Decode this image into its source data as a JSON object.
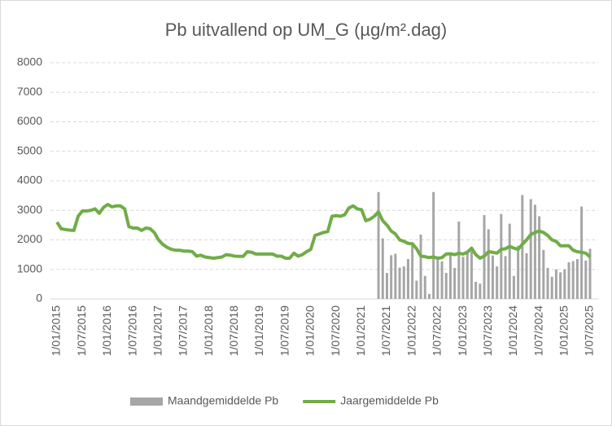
{
  "chart_data": {
    "type": "bar-line",
    "title": "Pb uitvallend op UM_G (µg/m².dag)",
    "categories": [
      "1/01/2015",
      null,
      null,
      null,
      null,
      null,
      "1/07/2015",
      null,
      null,
      null,
      null,
      null,
      "1/01/2016",
      null,
      null,
      null,
      null,
      null,
      "1/07/2016",
      null,
      null,
      null,
      null,
      null,
      "1/01/2017",
      null,
      null,
      null,
      null,
      null,
      "1/07/2017",
      null,
      null,
      null,
      null,
      null,
      "1/01/2018",
      null,
      null,
      null,
      null,
      null,
      "1/07/2018",
      null,
      null,
      null,
      null,
      null,
      "1/01/2019",
      null,
      null,
      null,
      null,
      null,
      "1/07/2019",
      null,
      null,
      null,
      null,
      null,
      "1/01/2020",
      null,
      null,
      null,
      null,
      null,
      "1/07/2020",
      null,
      null,
      null,
      null,
      null,
      "1/01/2021",
      null,
      null,
      null,
      null,
      null,
      "1/07/2021",
      null,
      null,
      null,
      null,
      null,
      "1/01/2022",
      null,
      null,
      null,
      null,
      null,
      "1/07/2022",
      null,
      null,
      null,
      null,
      null,
      "1/01/2023",
      null,
      null,
      null,
      null,
      null,
      "1/07/2023",
      null,
      null,
      null,
      null,
      null,
      "1/01/2024",
      null,
      null,
      null,
      null,
      null,
      "1/07/2024",
      null,
      null,
      null,
      null,
      null,
      "1/01/2025",
      null,
      null,
      null,
      null,
      null,
      "1/07/2025"
    ],
    "series": [
      {
        "name": "Maandgemiddelde Pb",
        "kind": "bar",
        "color": "#a6a6a6",
        "values": [
          null,
          null,
          null,
          null,
          null,
          null,
          null,
          null,
          null,
          null,
          null,
          null,
          null,
          null,
          null,
          null,
          null,
          null,
          null,
          null,
          null,
          null,
          null,
          null,
          null,
          null,
          null,
          null,
          null,
          null,
          null,
          null,
          null,
          null,
          null,
          null,
          null,
          null,
          null,
          null,
          null,
          null,
          null,
          null,
          null,
          null,
          null,
          null,
          null,
          null,
          null,
          null,
          null,
          null,
          null,
          null,
          null,
          null,
          null,
          null,
          null,
          null,
          null,
          null,
          null,
          null,
          null,
          null,
          null,
          null,
          null,
          null,
          null,
          null,
          null,
          null,
          3620,
          2050,
          880,
          1480,
          1530,
          1060,
          1100,
          1350,
          1850,
          620,
          2180,
          780,
          170,
          3620,
          1340,
          1270,
          880,
          1560,
          1050,
          2620,
          1430,
          1550,
          1700,
          580,
          520,
          2840,
          2360,
          1470,
          1100,
          2880,
          1450,
          2550,
          780,
          1800,
          3520,
          1550,
          3380,
          3190,
          2800,
          1660,
          1050,
          750,
          1000,
          900,
          1000,
          1240,
          1280,
          1350,
          3130,
          1300,
          1700
        ]
      },
      {
        "name": "Jaargemiddelde Pb",
        "kind": "line",
        "color": "#70ad47",
        "values": [
          2600,
          2380,
          2350,
          2330,
          2320,
          2800,
          2980,
          2980,
          3000,
          3050,
          2900,
          3100,
          3200,
          3120,
          3150,
          3150,
          3050,
          2450,
          2400,
          2400,
          2320,
          2400,
          2380,
          2250,
          2000,
          1850,
          1750,
          1680,
          1650,
          1650,
          1620,
          1620,
          1600,
          1450,
          1480,
          1420,
          1400,
          1380,
          1400,
          1420,
          1500,
          1480,
          1450,
          1440,
          1440,
          1600,
          1580,
          1520,
          1520,
          1520,
          1520,
          1520,
          1450,
          1450,
          1380,
          1380,
          1550,
          1450,
          1500,
          1600,
          1680,
          2150,
          2200,
          2250,
          2280,
          2800,
          2820,
          2800,
          2850,
          3080,
          3150,
          3050,
          3020,
          2650,
          2700,
          2800,
          2950,
          2650,
          2500,
          2300,
          2200,
          2000,
          1950,
          1880,
          1870,
          1700,
          1450,
          1430,
          1400,
          1420,
          1380,
          1400,
          1520,
          1530,
          1500,
          1550,
          1520,
          1580,
          1720,
          1500,
          1380,
          1450,
          1600,
          1580,
          1550,
          1680,
          1700,
          1780,
          1720,
          1680,
          1850,
          2000,
          2180,
          2250,
          2300,
          2250,
          2150,
          2000,
          1950,
          1800,
          1800,
          1800,
          1650,
          1600,
          1580,
          1550,
          1420
        ]
      }
    ],
    "ylim": [
      0,
      8000
    ],
    "yticks": [
      0,
      1000,
      2000,
      3000,
      4000,
      5000,
      6000,
      7000,
      8000
    ],
    "grid": true,
    "legend": "bottom"
  }
}
